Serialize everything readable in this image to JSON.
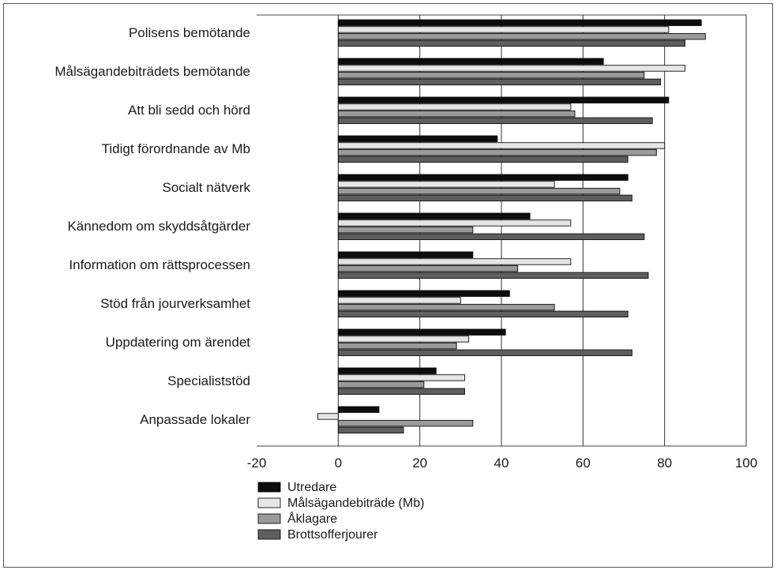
{
  "chart_data": {
    "type": "bar",
    "orientation": "horizontal",
    "categories": [
      "Polisens bemötande",
      "Målsägandebiträdets bemötande",
      "Att bli sedd och hörd",
      "Tidigt förordnande av Mb",
      "Socialt nätverk",
      "Kännedom om skyddsåtgärder",
      "Information om rättsprocessen",
      "Stöd från jourverksamhet",
      "Uppdatering om ärendet",
      "Specialiststöd",
      "Anpassade lokaler"
    ],
    "series": [
      {
        "name": "Utredare",
        "color": "#0d0d0d",
        "values": [
          89,
          65,
          81,
          39,
          71,
          47,
          33,
          42,
          41,
          24,
          10
        ]
      },
      {
        "name": "Målsägandebiträde (Mb)",
        "color": "#e6e6e6",
        "values": [
          81,
          85,
          57,
          80,
          53,
          57,
          57,
          30,
          32,
          31,
          -5
        ]
      },
      {
        "name": "Åklagare",
        "color": "#9a9a9a",
        "values": [
          90,
          75,
          58,
          78,
          69,
          33,
          44,
          53,
          29,
          21,
          33
        ]
      },
      {
        "name": "Brottsofferjourer",
        "color": "#5e5e5e",
        "values": [
          85,
          79,
          77,
          71,
          72,
          75,
          76,
          71,
          72,
          31,
          16
        ]
      }
    ],
    "x_ticks": [
      -20,
      0,
      20,
      40,
      60,
      80,
      100
    ],
    "xlim": [
      -20,
      100
    ],
    "grid": "vertical",
    "legend": "bottom-left"
  }
}
